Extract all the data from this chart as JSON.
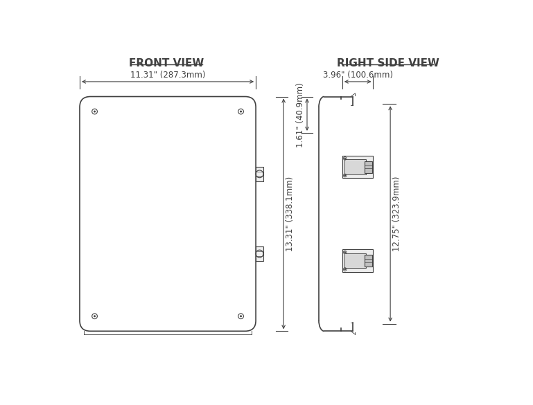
{
  "title_front": "FRONT VIEW",
  "title_right": "RIGHT SIDE VIEW",
  "bg_color": "#ffffff",
  "line_color": "#404040",
  "dim_color": "#404040",
  "font_size_title": 11,
  "font_size_dim": 8.5,
  "dim_width_text": "11.31\" (287.3mm)",
  "dim_height_text": "13.31\" (338.1mm)",
  "right_depth_text": "3.96\" (100.6mm)",
  "right_top_text": "1.61\" (40.9mm)",
  "right_height_text": "12.75\" (323.9mm)"
}
